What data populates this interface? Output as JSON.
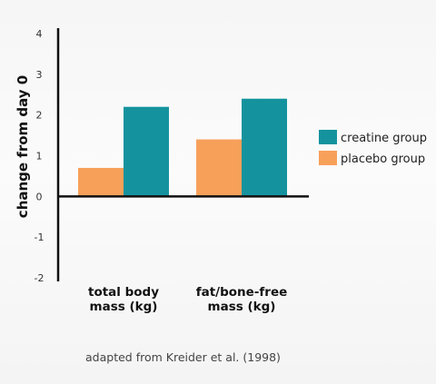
{
  "chart_data": {
    "type": "bar",
    "categories": [
      [
        "total body",
        "mass (kg)"
      ],
      [
        "fat/bone-free",
        "mass (kg)"
      ]
    ],
    "series": [
      {
        "name": "placebo group",
        "values": [
          0.7,
          1.4
        ],
        "color": "#f7a05a"
      },
      {
        "name": "creatine group",
        "values": [
          2.2,
          2.4
        ],
        "color": "#14939e"
      }
    ],
    "legend_order": [
      1,
      0
    ],
    "ylabel": "change from day 0",
    "ylim": [
      -2,
      4
    ],
    "yticks": [
      4,
      3,
      2,
      1,
      0,
      -1,
      -2
    ],
    "grid": false,
    "legend_placement": "right"
  },
  "caption": "adapted from Kreider et al. (1998)"
}
